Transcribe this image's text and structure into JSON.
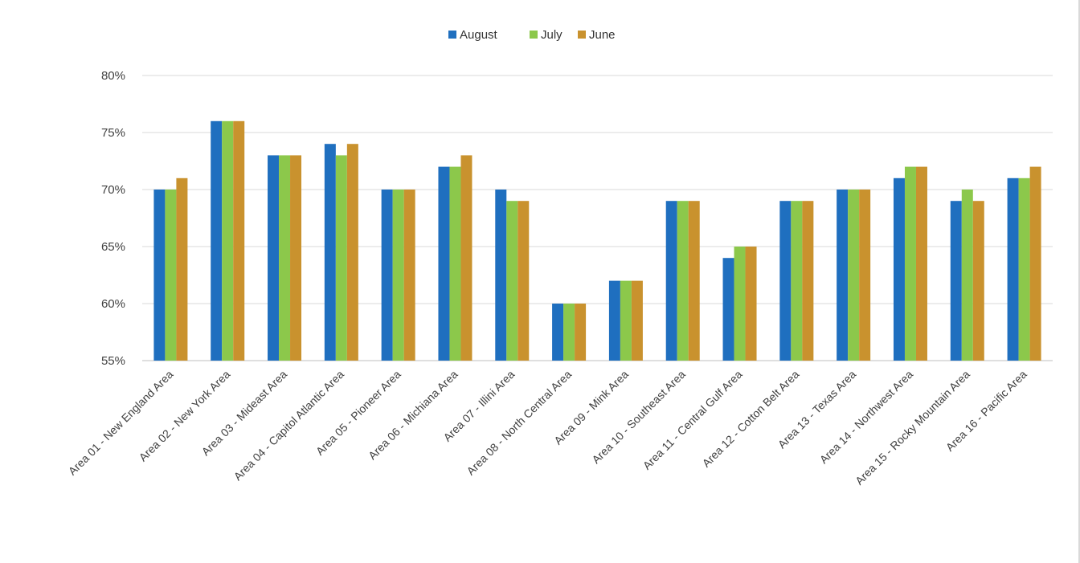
{
  "chart_data": {
    "type": "bar",
    "title": "",
    "xlabel": "",
    "ylabel": "",
    "ylim": [
      55,
      80
    ],
    "yticks": [
      "80%",
      "75%",
      "70%",
      "65%",
      "60%",
      "55%"
    ],
    "grid": true,
    "legend": "top-center",
    "categories": [
      "Area 01 - New England Area",
      "Area 02 - New York Area",
      "Area 03 - Mideast Area",
      "Area 04 - Capitol Atlantic Area",
      "Area 05 - Pioneer Area",
      "Area 06 - Michiana Area",
      "Area 07 - Illini Area",
      "Area 08 - North Central Area",
      "Area 09 - Mink Area",
      "Area 10 - Southeast Area",
      "Area 11 - Central Gulf Area",
      "Area 12 - Cotton Belt Area",
      "Area 13 - Texas Area",
      "Area 14 - Northwest Area",
      "Area 15 - Rocky Mountain Area",
      "Area 16 - Pacific Area"
    ],
    "series": [
      {
        "name": "August",
        "color": "#1f6fbf",
        "values": [
          70,
          76,
          73,
          74,
          70,
          72,
          70,
          60,
          62,
          69,
          64,
          69,
          70,
          71,
          69,
          71
        ]
      },
      {
        "name": "July",
        "color": "#8cc84b",
        "values": [
          70,
          76,
          73,
          73,
          70,
          72,
          69,
          60,
          62,
          69,
          65,
          69,
          70,
          72,
          70,
          71
        ]
      },
      {
        "name": "June",
        "color": "#c9922e",
        "values": [
          71,
          76,
          73,
          74,
          70,
          73,
          69,
          60,
          62,
          69,
          65,
          69,
          70,
          72,
          69,
          72
        ]
      }
    ]
  }
}
